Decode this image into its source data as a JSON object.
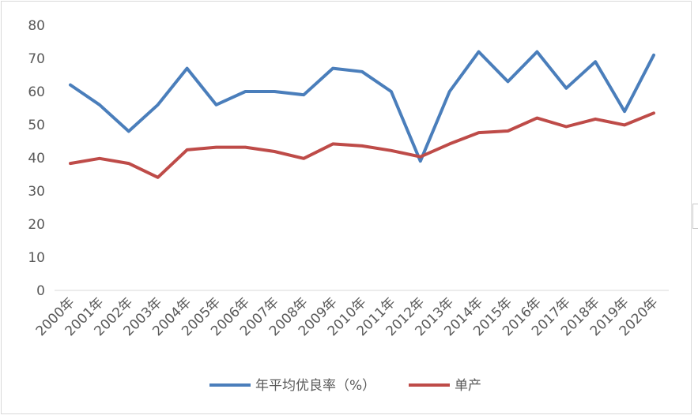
{
  "chart_data": {
    "type": "line",
    "categories": [
      "2000年",
      "2001年",
      "2002年",
      "2003年",
      "2004年",
      "2005年",
      "2006年",
      "2007年",
      "2008年",
      "2009年",
      "2010年",
      "2011年",
      "2012年",
      "2013年",
      "2014年",
      "2015年",
      "2016年",
      "2017年",
      "2018年",
      "2019年",
      "2020年"
    ],
    "series": [
      {
        "name": "年平均优良率（%）",
        "color": "#4a7ebb",
        "values": [
          62,
          56,
          48,
          56,
          67,
          56,
          60,
          60,
          59,
          67,
          66,
          60,
          39,
          60,
          72,
          63,
          72,
          61,
          69,
          54,
          71
        ]
      },
      {
        "name": "单产",
        "color": "#be4b48",
        "values": [
          38.3,
          39.8,
          38.3,
          34.1,
          42.4,
          43.2,
          43.2,
          41.9,
          39.8,
          44.2,
          43.6,
          42.2,
          40.3,
          44.2,
          47.6,
          48.1,
          52.0,
          49.4,
          51.7,
          49.9,
          53.5
        ]
      }
    ],
    "yticks": [
      "0",
      "10",
      "20",
      "30",
      "40",
      "50",
      "60",
      "70",
      "80"
    ],
    "ylim": [
      0,
      80
    ],
    "title": "",
    "xlabel": "",
    "ylabel": "",
    "grid": false,
    "legend_position": "bottom"
  }
}
